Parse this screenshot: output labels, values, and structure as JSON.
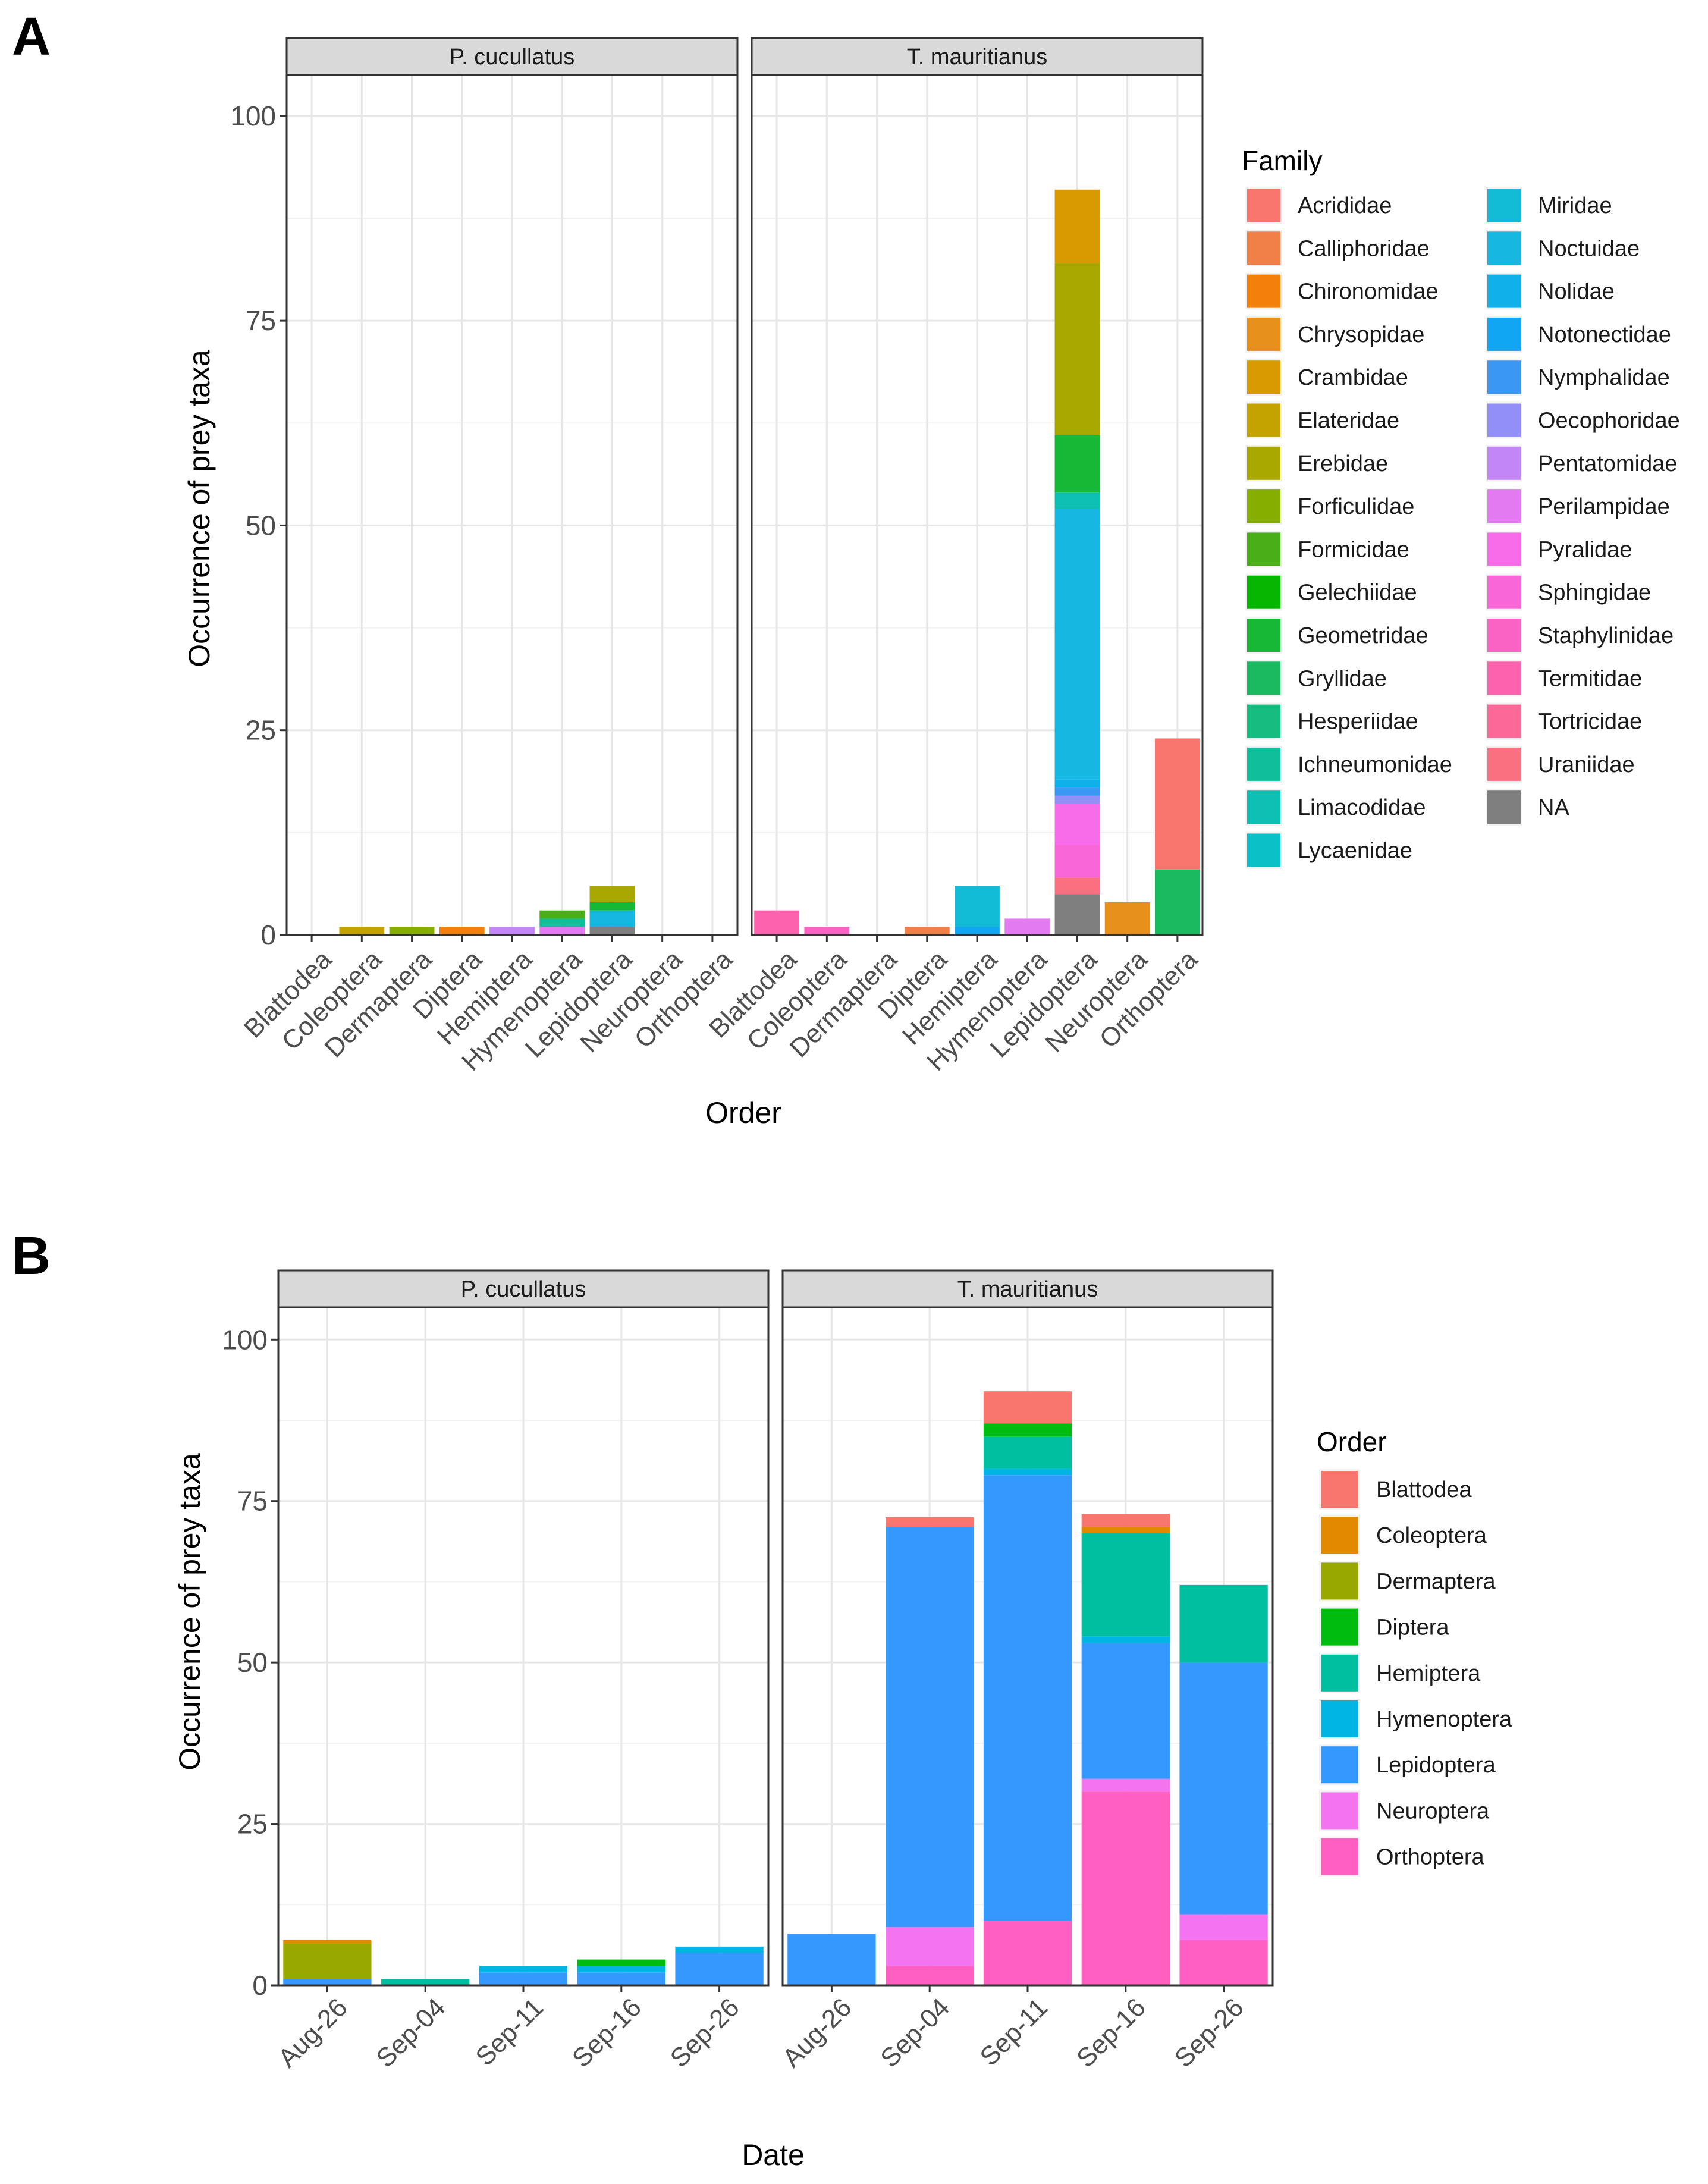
{
  "chart_data": [
    {
      "panel_label": "A",
      "type": "bar",
      "stacked": true,
      "title": "",
      "xlabel": "Order",
      "ylabel": "Occurrence of prey taxa",
      "ylim": [
        0,
        105
      ],
      "yticks": [
        0,
        25,
        50,
        75,
        100
      ],
      "grid": true,
      "facets": [
        "P. cucullatus",
        "T. mauritianus"
      ],
      "categories": [
        "Blattodea",
        "Coleoptera",
        "Dermaptera",
        "Diptera",
        "Hemiptera",
        "Hymenoptera",
        "Lepidoptera",
        "Neuroptera",
        "Orthoptera"
      ],
      "legend": {
        "title": "Family",
        "position": "right",
        "entries": [
          {
            "name": "Acrididae",
            "color": "#F8766D"
          },
          {
            "name": "Calliphoridae",
            "color": "#F07F48"
          },
          {
            "name": "Chironomidae",
            "color": "#F4800C"
          },
          {
            "name": "Chrysopidae",
            "color": "#E8901C"
          },
          {
            "name": "Crambidae",
            "color": "#D89A00"
          },
          {
            "name": "Elateridae",
            "color": "#C4A200"
          },
          {
            "name": "Erebidae",
            "color": "#A8A800"
          },
          {
            "name": "Forficulidae",
            "color": "#86AE00"
          },
          {
            "name": "Formicidae",
            "color": "#4AAE18"
          },
          {
            "name": "Gelechiidae",
            "color": "#06B600"
          },
          {
            "name": "Geometridae",
            "color": "#16B836"
          },
          {
            "name": "Gryllidae",
            "color": "#1CBA60"
          },
          {
            "name": "Hesperiidae",
            "color": "#16BC80"
          },
          {
            "name": "Ichneumonidae",
            "color": "#10BE9C"
          },
          {
            "name": "Limacodidae",
            "color": "#0EBFB4"
          },
          {
            "name": "Lycaenidae",
            "color": "#0CC0C8"
          },
          {
            "name": "Miridae",
            "color": "#12BCD6"
          },
          {
            "name": "Noctuidae",
            "color": "#16B8E2"
          },
          {
            "name": "Nolidae",
            "color": "#10B0EA"
          },
          {
            "name": "Notonectidae",
            "color": "#10A6F4"
          },
          {
            "name": "Nymphalidae",
            "color": "#3A98F4"
          },
          {
            "name": "Oecophoridae",
            "color": "#9290F8"
          },
          {
            "name": "Pentatomidae",
            "color": "#C286F6"
          },
          {
            "name": "Perilampidae",
            "color": "#E47AF2"
          },
          {
            "name": "Pyralidae",
            "color": "#F86CEA"
          },
          {
            "name": "Sphingidae",
            "color": "#F866D8"
          },
          {
            "name": "Staphylinidae",
            "color": "#FA62C4"
          },
          {
            "name": "Termitidae",
            "color": "#FC62AE"
          },
          {
            "name": "Tortricidae",
            "color": "#FC6898"
          },
          {
            "name": "Uraniidae",
            "color": "#FA7080"
          },
          {
            "name": "NA",
            "color": "#7F7F7F"
          }
        ]
      },
      "bars": [
        {
          "facet": "P. cucullatus",
          "category": "Coleoptera",
          "segments": [
            {
              "family": "Elateridae",
              "value": 1
            }
          ]
        },
        {
          "facet": "P. cucullatus",
          "category": "Dermaptera",
          "segments": [
            {
              "family": "Forficulidae",
              "value": 1
            }
          ]
        },
        {
          "facet": "P. cucullatus",
          "category": "Diptera",
          "segments": [
            {
              "family": "Chironomidae",
              "value": 1
            }
          ]
        },
        {
          "facet": "P. cucullatus",
          "category": "Hemiptera",
          "segments": [
            {
              "family": "Pentatomidae",
              "value": 1
            }
          ]
        },
        {
          "facet": "P. cucullatus",
          "category": "Hymenoptera",
          "segments": [
            {
              "family": "Perilampidae",
              "value": 1
            },
            {
              "family": "Ichneumonidae",
              "value": 1
            },
            {
              "family": "Formicidae",
              "value": 1
            }
          ]
        },
        {
          "facet": "P. cucullatus",
          "category": "Lepidoptera",
          "segments": [
            {
              "family": "NA",
              "value": 1
            },
            {
              "family": "Noctuidae",
              "value": 2
            },
            {
              "family": "Geometridae",
              "value": 1
            },
            {
              "family": "Erebidae",
              "value": 2
            }
          ]
        },
        {
          "facet": "T. mauritianus",
          "category": "Blattodea",
          "segments": [
            {
              "family": "Termitidae",
              "value": 3
            }
          ]
        },
        {
          "facet": "T. mauritianus",
          "category": "Coleoptera",
          "segments": [
            {
              "family": "Staphylinidae",
              "value": 1
            }
          ]
        },
        {
          "facet": "T. mauritianus",
          "category": "Diptera",
          "segments": [
            {
              "family": "Calliphoridae",
              "value": 1
            }
          ]
        },
        {
          "facet": "T. mauritianus",
          "category": "Hemiptera",
          "segments": [
            {
              "family": "Notonectidae",
              "value": 1
            },
            {
              "family": "Miridae",
              "value": 5
            }
          ]
        },
        {
          "facet": "T. mauritianus",
          "category": "Hymenoptera",
          "segments": [
            {
              "family": "Perilampidae",
              "value": 2
            }
          ]
        },
        {
          "facet": "T. mauritianus",
          "category": "Lepidoptera",
          "segments": [
            {
              "family": "NA",
              "value": 5
            },
            {
              "family": "Uraniidae",
              "value": 2
            },
            {
              "family": "Sphingidae",
              "value": 4
            },
            {
              "family": "Pyralidae",
              "value": 5
            },
            {
              "family": "Oecophoridae",
              "value": 1
            },
            {
              "family": "Nymphalidae",
              "value": 1
            },
            {
              "family": "Nolidae",
              "value": 1
            },
            {
              "family": "Noctuidae",
              "value": 33
            },
            {
              "family": "Limacodidae",
              "value": 2
            },
            {
              "family": "Geometridae",
              "value": 7
            },
            {
              "family": "Erebidae",
              "value": 21
            },
            {
              "family": "Crambidae",
              "value": 9
            }
          ]
        },
        {
          "facet": "T. mauritianus",
          "category": "Neuroptera",
          "segments": [
            {
              "family": "Chrysopidae",
              "value": 4
            }
          ]
        },
        {
          "facet": "T. mauritianus",
          "category": "Orthoptera",
          "segments": [
            {
              "family": "Gryllidae",
              "value": 8
            },
            {
              "family": "Acrididae",
              "value": 16
            }
          ]
        }
      ]
    },
    {
      "panel_label": "B",
      "type": "bar",
      "stacked": true,
      "title": "",
      "xlabel": "Date",
      "ylabel": "Occurrence of prey taxa",
      "ylim": [
        0,
        105
      ],
      "yticks": [
        0,
        25,
        50,
        75,
        100
      ],
      "grid": true,
      "facets": [
        "P. cucullatus",
        "T. mauritianus"
      ],
      "categories": [
        "Aug-26",
        "Sep-04",
        "Sep-11",
        "Sep-16",
        "Sep-26"
      ],
      "legend": {
        "title": "Order",
        "position": "right",
        "entries": [
          {
            "name": "Blattodea",
            "color": "#F8766D"
          },
          {
            "name": "Coleoptera",
            "color": "#E38900"
          },
          {
            "name": "Dermaptera",
            "color": "#99A800"
          },
          {
            "name": "Diptera",
            "color": "#00BC0E"
          },
          {
            "name": "Hemiptera",
            "color": "#00BFA0"
          },
          {
            "name": "Hymenoptera",
            "color": "#00B4E4"
          },
          {
            "name": "Lepidoptera",
            "color": "#3399FF"
          },
          {
            "name": "Neuroptera",
            "color": "#F374EE"
          },
          {
            "name": "Orthoptera",
            "color": "#FF5FC0"
          }
        ]
      },
      "bars": [
        {
          "facet": "P. cucullatus",
          "category": "Aug-26",
          "segments": [
            {
              "order": "Lepidoptera",
              "value": 1
            },
            {
              "order": "Dermaptera",
              "value": 5.5
            },
            {
              "order": "Coleoptera",
              "value": 0.5
            }
          ]
        },
        {
          "facet": "P. cucullatus",
          "category": "Sep-04",
          "segments": [
            {
              "order": "Hemiptera",
              "value": 1
            }
          ]
        },
        {
          "facet": "P. cucullatus",
          "category": "Sep-11",
          "segments": [
            {
              "order": "Lepidoptera",
              "value": 2
            },
            {
              "order": "Hymenoptera",
              "value": 1
            }
          ]
        },
        {
          "facet": "P. cucullatus",
          "category": "Sep-16",
          "segments": [
            {
              "order": "Lepidoptera",
              "value": 2
            },
            {
              "order": "Hymenoptera",
              "value": 1
            },
            {
              "order": "Diptera",
              "value": 1
            }
          ]
        },
        {
          "facet": "P. cucullatus",
          "category": "Sep-26",
          "segments": [
            {
              "order": "Lepidoptera",
              "value": 5
            },
            {
              "order": "Hymenoptera",
              "value": 1
            }
          ]
        },
        {
          "facet": "T. mauritianus",
          "category": "Aug-26",
          "segments": [
            {
              "order": "Lepidoptera",
              "value": 8
            }
          ]
        },
        {
          "facet": "T. mauritianus",
          "category": "Sep-04",
          "segments": [
            {
              "order": "Orthoptera",
              "value": 3
            },
            {
              "order": "Neuroptera",
              "value": 6
            },
            {
              "order": "Lepidoptera",
              "value": 62
            },
            {
              "order": "Blattodea",
              "value": 1.5
            }
          ]
        },
        {
          "facet": "T. mauritianus",
          "category": "Sep-11",
          "segments": [
            {
              "order": "Orthoptera",
              "value": 10
            },
            {
              "order": "Lepidoptera",
              "value": 69
            },
            {
              "order": "Hymenoptera",
              "value": 1
            },
            {
              "order": "Hemiptera",
              "value": 5
            },
            {
              "order": "Diptera",
              "value": 2
            },
            {
              "order": "Blattodea",
              "value": 5
            }
          ]
        },
        {
          "facet": "T. mauritianus",
          "category": "Sep-16",
          "segments": [
            {
              "order": "Orthoptera",
              "value": 30
            },
            {
              "order": "Neuroptera",
              "value": 2
            },
            {
              "order": "Lepidoptera",
              "value": 21
            },
            {
              "order": "Hymenoptera",
              "value": 1
            },
            {
              "order": "Hemiptera",
              "value": 16
            },
            {
              "order": "Coleoptera",
              "value": 1
            },
            {
              "order": "Blattodea",
              "value": 2
            }
          ]
        },
        {
          "facet": "T. mauritianus",
          "category": "Sep-26",
          "segments": [
            {
              "order": "Orthoptera",
              "value": 7
            },
            {
              "order": "Neuroptera",
              "value": 4
            },
            {
              "order": "Lepidoptera",
              "value": 39
            },
            {
              "order": "Hemiptera",
              "value": 12
            }
          ]
        }
      ]
    }
  ]
}
